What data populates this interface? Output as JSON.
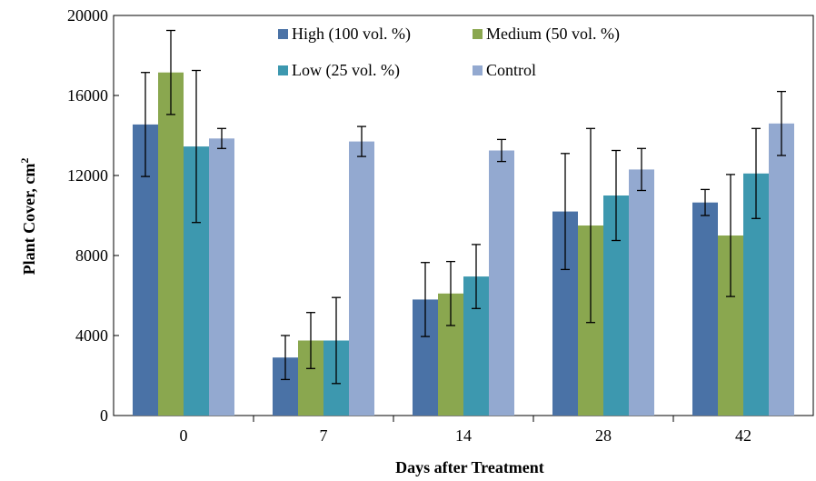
{
  "chart_data": {
    "type": "bar",
    "categories": [
      "0",
      "7",
      "14",
      "28",
      "42"
    ],
    "series": [
      {
        "name": "High (100 vol. %)",
        "color": "#4A72A6",
        "values": [
          14550,
          2900,
          5800,
          10200,
          10650
        ],
        "error": [
          2600,
          1100,
          1850,
          2900,
          650
        ]
      },
      {
        "name": "Medium (50 vol. %)",
        "color": "#8AA74F",
        "values": [
          17150,
          3750,
          6100,
          9500,
          9000
        ],
        "error": [
          2100,
          1400,
          1600,
          4850,
          3050
        ]
      },
      {
        "name": "Low (25 vol. %)",
        "color": "#3D98AF",
        "values": [
          13450,
          3750,
          6950,
          11000,
          12100
        ],
        "error": [
          3800,
          2150,
          1600,
          2250,
          2250
        ]
      },
      {
        "name": "Control",
        "color": "#93A9D0",
        "values": [
          13850,
          13700,
          13250,
          12300,
          14600
        ],
        "error": [
          500,
          750,
          550,
          1050,
          1600
        ]
      }
    ],
    "xlabel": "Days after Treatment",
    "ylabel": "Plant Cover, cm",
    "ylabel_superscript": "2",
    "ylim": [
      0,
      20000
    ],
    "yticks": [
      "0",
      "4000",
      "8000",
      "12000",
      "16000",
      "20000"
    ],
    "grid": false,
    "legend_position": "top-right"
  }
}
